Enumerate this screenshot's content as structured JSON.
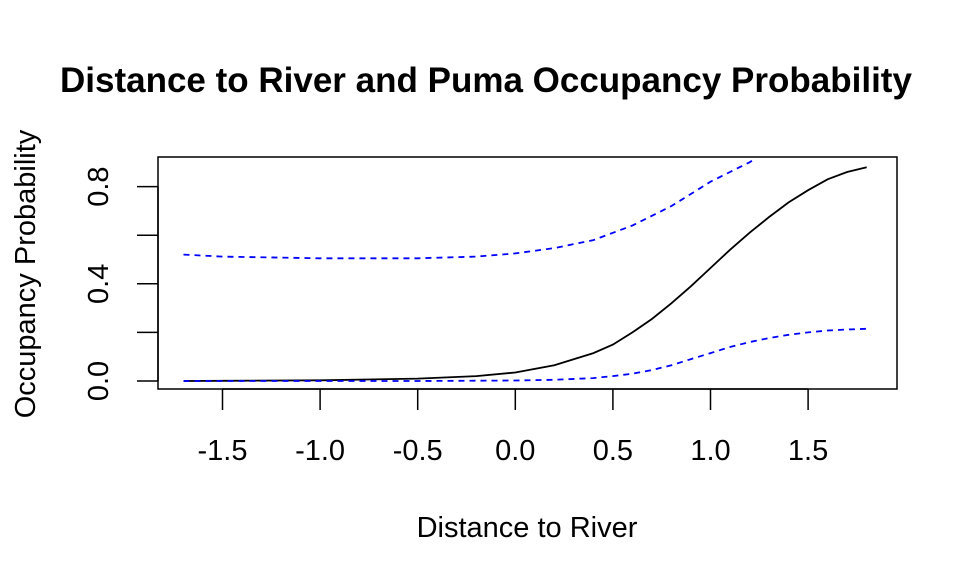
{
  "chart_data": {
    "type": "line",
    "title": "Distance to River and Puma Occupancy Probability",
    "xlabel": "Distance to River",
    "ylabel": "Occupancy Probability",
    "xlim": [
      -1.7,
      1.8
    ],
    "ylim": [
      0,
      0.91
    ],
    "xticks": [
      "-1.5",
      "-1.0",
      "-0.5",
      "0.0",
      "0.5",
      "1.0",
      "1.5"
    ],
    "yticks": [
      "0.0",
      "0.4",
      "0.8"
    ],
    "grid": false,
    "legend": "none",
    "series": [
      {
        "role": "estimate",
        "color": "#000000",
        "dash": "solid",
        "x": [
          -1.7,
          -1.5,
          -1.0,
          -0.5,
          -0.2,
          0.0,
          0.2,
          0.4,
          0.5,
          0.6,
          0.7,
          0.8,
          0.9,
          1.0,
          1.1,
          1.2,
          1.3,
          1.4,
          1.5,
          1.6,
          1.7,
          1.8
        ],
        "y": [
          0.0,
          0.001,
          0.003,
          0.01,
          0.02,
          0.035,
          0.065,
          0.115,
          0.15,
          0.2,
          0.255,
          0.32,
          0.39,
          0.465,
          0.54,
          0.61,
          0.675,
          0.735,
          0.785,
          0.83,
          0.86,
          0.88
        ]
      },
      {
        "role": "upper-bound",
        "color": "#0000ff",
        "dash": "dashed",
        "x": [
          -1.7,
          -1.5,
          -1.0,
          -0.5,
          -0.2,
          0.0,
          0.2,
          0.4,
          0.5,
          0.6,
          0.7,
          0.8,
          0.9,
          1.0,
          1.1,
          1.2,
          1.22
        ],
        "y": [
          0.52,
          0.512,
          0.505,
          0.505,
          0.512,
          0.525,
          0.547,
          0.58,
          0.61,
          0.64,
          0.68,
          0.72,
          0.77,
          0.82,
          0.86,
          0.9,
          0.91
        ]
      },
      {
        "role": "lower-bound",
        "color": "#0000ff",
        "dash": "dashed",
        "x": [
          -1.7,
          -1.5,
          -1.0,
          -0.5,
          0.0,
          0.2,
          0.4,
          0.5,
          0.6,
          0.7,
          0.8,
          0.9,
          1.0,
          1.1,
          1.2,
          1.3,
          1.4,
          1.5,
          1.6,
          1.7,
          1.8
        ],
        "y": [
          0.0,
          0.0,
          0.0,
          0.0,
          0.002,
          0.005,
          0.012,
          0.02,
          0.03,
          0.045,
          0.065,
          0.09,
          0.115,
          0.14,
          0.16,
          0.177,
          0.19,
          0.2,
          0.208,
          0.212,
          0.215
        ]
      }
    ]
  }
}
